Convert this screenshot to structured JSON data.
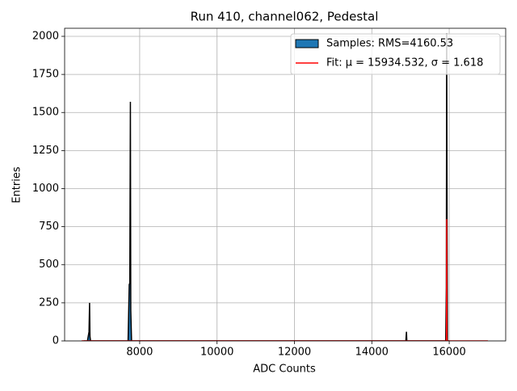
{
  "chart_data": {
    "type": "histogram",
    "title": "Run 410, channel062, Pedestal",
    "x_label": "ADC Counts",
    "y_label": "Entries",
    "xlim": [
      6060,
      17460
    ],
    "ylim": [
      0,
      2053
    ],
    "xticks": [
      8000,
      10000,
      12000,
      14000,
      16000
    ],
    "yticks": [
      0,
      250,
      500,
      750,
      1000,
      1250,
      1500,
      1750,
      2000
    ],
    "grid": true,
    "legend": "upper right",
    "series": [
      {
        "name": "Samples: RMS=4160.53",
        "kind": "area",
        "color": "#1f77b4",
        "edgecolor": "#000000",
        "x": [
          6550,
          6650,
          6690,
          6705,
          6715,
          6730,
          7700,
          7730,
          7745,
          7760,
          7770,
          7790,
          14880,
          14895,
          14905,
          15910,
          15925,
          15935,
          15945,
          15955,
          16000
        ],
        "values": [
          0,
          0,
          60,
          250,
          30,
          0,
          0,
          370,
          380,
          1570,
          200,
          0,
          0,
          60,
          0,
          0,
          350,
          2020,
          800,
          0,
          0
        ]
      },
      {
        "name": "Fit: μ = 15934.532, σ = 1.618",
        "kind": "line",
        "color": "#ff0000",
        "x": [
          6500,
          15925,
          15930,
          15932,
          15934.5,
          15937,
          15939,
          15945,
          17000
        ],
        "values": [
          0,
          0,
          30,
          400,
          800,
          400,
          30,
          0,
          0
        ]
      }
    ]
  }
}
